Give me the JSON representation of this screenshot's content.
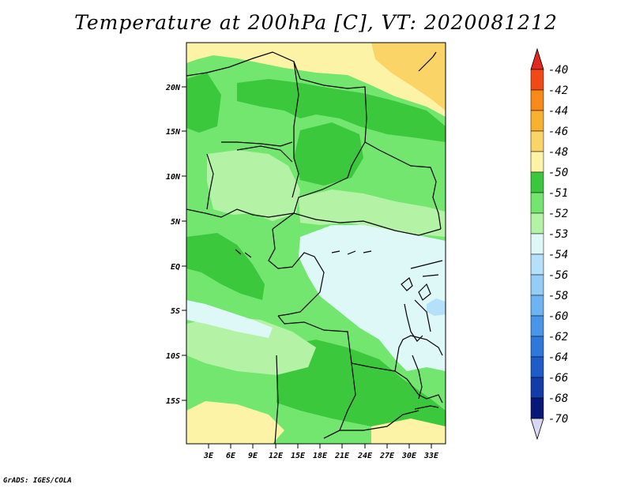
{
  "title": "Temperature at 200hPa [C], VT: 2020081212",
  "credit": "GrADS: IGES/COLA",
  "colors": {
    "c40": "#e0281e",
    "c42": "#f24a16",
    "c44": "#f68a18",
    "c46": "#f8b030",
    "c48": "#fbd468",
    "c50": "#fdf3a6",
    "c51": "#3cc83c",
    "c52": "#72e66e",
    "c53": "#b4f2a6",
    "c54": "#def8f8",
    "c56": "#b4e0fa",
    "c58": "#94ccf6",
    "c60": "#6eb4f2",
    "c62": "#4896ea",
    "c64": "#2e78dc",
    "c66": "#1e5cc8",
    "c68": "#123ca8",
    "c70": "#081878",
    "below": "#d8d8f2"
  },
  "colorbar": {
    "labels": [
      "-40",
      "-42",
      "-44",
      "-46",
      "-48",
      "-50",
      "-51",
      "-52",
      "-53",
      "-54",
      "-56",
      "-58",
      "-60",
      "-62",
      "-64",
      "-66",
      "-68",
      "-70"
    ]
  },
  "axes": {
    "lat_labels": [
      "20N",
      "15N",
      "10N",
      "5N",
      "EQ",
      "5S",
      "10S",
      "15S"
    ],
    "lon_labels": [
      "3E",
      "6E",
      "9E",
      "12E",
      "15E",
      "18E",
      "21E",
      "24E",
      "27E",
      "30E",
      "33E"
    ]
  }
}
